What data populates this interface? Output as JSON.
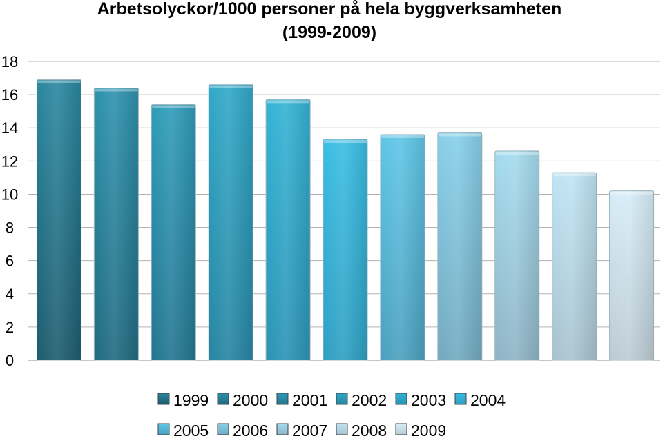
{
  "chart_data": {
    "type": "bar",
    "title_line1": "Arbetsolyckor/1000 personer  på hela byggverksamheten",
    "title_line2": "(1999-2009)",
    "xlabel": "",
    "ylabel": "",
    "ylim": [
      0,
      18
    ],
    "yticks": [
      "0",
      "2",
      "4",
      "6",
      "8",
      "10",
      "12",
      "14",
      "16",
      "18"
    ],
    "grid": true,
    "legend_position": "bottom",
    "series": [
      {
        "name": "1999",
        "value": 16.9,
        "color_top": "#2a87a0",
        "color_bottom": "#1d5c6e"
      },
      {
        "name": "2000",
        "value": 16.4,
        "color_top": "#2c92ad",
        "color_bottom": "#206a80"
      },
      {
        "name": "2001",
        "value": 15.4,
        "color_top": "#2e9cb9",
        "color_bottom": "#237590"
      },
      {
        "name": "2002",
        "value": 16.6,
        "color_top": "#30a8c8",
        "color_bottom": "#2685a2"
      },
      {
        "name": "2003",
        "value": 15.7,
        "color_top": "#33b3d5",
        "color_bottom": "#2a93b4"
      },
      {
        "name": "2004",
        "value": 13.3,
        "color_top": "#39bde3",
        "color_bottom": "#2e9fc2"
      },
      {
        "name": "2005",
        "value": 13.6,
        "color_top": "#5ec6e7",
        "color_bottom": "#4aa0be"
      },
      {
        "name": "2006",
        "value": 13.7,
        "color_top": "#86d0ea",
        "color_bottom": "#72a9bf"
      },
      {
        "name": "2007",
        "value": 12.6,
        "color_top": "#a4dbef",
        "color_bottom": "#8eb4c4"
      },
      {
        "name": "2008",
        "value": 11.3,
        "color_top": "#bfe4f4",
        "color_bottom": "#a8c2cf"
      },
      {
        "name": "2009",
        "value": 10.2,
        "color_top": "#d6edf8",
        "color_bottom": "#bccbd4"
      }
    ]
  }
}
